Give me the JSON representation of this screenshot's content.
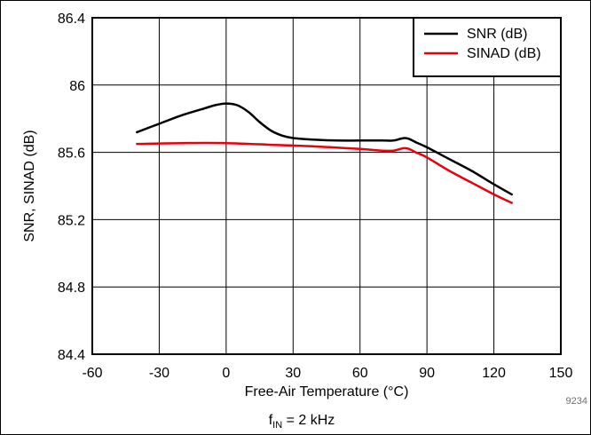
{
  "chart_data": {
    "type": "line",
    "xlabel": "Free-Air Temperature (°C)",
    "ylabel": "SNR, SINAD (dB)",
    "xlim": [
      -60,
      150
    ],
    "ylim": [
      84.4,
      86.4
    ],
    "x_ticks": [
      -60,
      -30,
      0,
      30,
      60,
      90,
      120,
      150
    ],
    "x_tick_labels": [
      "-60",
      "-30",
      "0",
      "30",
      "60",
      "90",
      "120",
      "150"
    ],
    "y_ticks": [
      84.4,
      84.8,
      85.2,
      85.6,
      86,
      86.4
    ],
    "y_tick_labels": [
      "84.4",
      "84.8",
      "85.2",
      "85.6",
      "86",
      "86.4"
    ],
    "grid": true,
    "legend_position": "top-right",
    "series": [
      {
        "name": "SNR (dB)",
        "color": "#000000",
        "x": [
          -40,
          -30,
          -20,
          -10,
          -5,
          0,
          5,
          10,
          15,
          20,
          25,
          30,
          40,
          50,
          60,
          70,
          75,
          78,
          80,
          82,
          85,
          90,
          100,
          110,
          120,
          128
        ],
        "y": [
          85.72,
          85.77,
          85.82,
          85.86,
          85.88,
          85.89,
          85.88,
          85.84,
          85.78,
          85.73,
          85.7,
          85.685,
          85.675,
          85.67,
          85.67,
          85.67,
          85.67,
          85.68,
          85.685,
          85.68,
          85.66,
          85.63,
          85.56,
          85.49,
          85.41,
          85.35
        ]
      },
      {
        "name": "SINAD (dB)",
        "color": "#e8000b",
        "x": [
          -40,
          -20,
          0,
          20,
          40,
          60,
          70,
          75,
          78,
          80,
          82,
          85,
          90,
          100,
          110,
          120,
          128
        ],
        "y": [
          85.65,
          85.655,
          85.655,
          85.645,
          85.635,
          85.62,
          85.61,
          85.61,
          85.62,
          85.625,
          85.62,
          85.6,
          85.57,
          85.49,
          85.42,
          85.35,
          85.3
        ]
      }
    ],
    "caption": {
      "main": "f",
      "sub": "IN",
      "rest": " = 2 kHz"
    },
    "doc_id": "9234"
  }
}
